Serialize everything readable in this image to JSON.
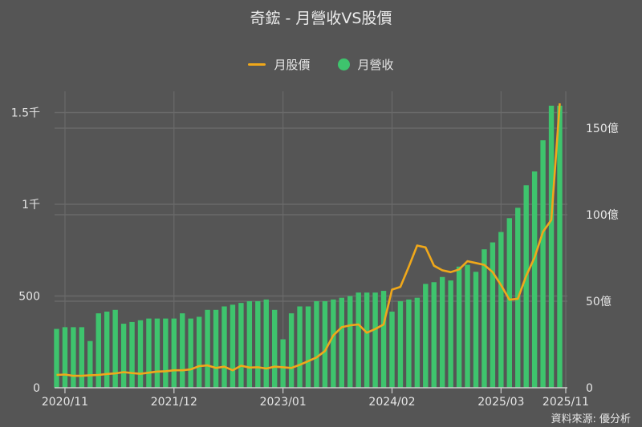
{
  "title": "奇鋐 - 月營收VS股價",
  "legend": {
    "price_label": "月股價",
    "revenue_label": "月營收"
  },
  "source": "資料來源: 優分析",
  "colors": {
    "background": "#555555",
    "price_line": "#f0a81a",
    "revenue_bar": "#3ec46d",
    "grid": "#6a6a6a"
  },
  "chart_data": {
    "type": "bar+line",
    "title": "奇鋐 - 月營收VS股價",
    "xlabel": "",
    "x_ticks": [
      "2020/11",
      "2021/12",
      "2023/01",
      "2024/02",
      "2025/03",
      "2025/11"
    ],
    "left_axis": {
      "label": "月股價",
      "ticks": [
        "0",
        "500",
        "1千",
        "1.5千"
      ],
      "tick_values": [
        0,
        500,
        1000,
        1500
      ],
      "ylim": [
        0,
        1500
      ]
    },
    "right_axis": {
      "label": "月營收 (億)",
      "ticks": [
        "0",
        "50億",
        "100億",
        "150億"
      ],
      "tick_values": [
        0,
        50,
        100,
        150
      ],
      "ylim": [
        0,
        160
      ]
    },
    "grid": true,
    "legend_position": "top",
    "categories": [
      "2020/10",
      "2020/11",
      "2020/12",
      "2021/01",
      "2021/02",
      "2021/03",
      "2021/04",
      "2021/05",
      "2021/06",
      "2021/07",
      "2021/08",
      "2021/09",
      "2021/10",
      "2021/11",
      "2021/12",
      "2022/01",
      "2022/02",
      "2022/03",
      "2022/04",
      "2022/05",
      "2022/06",
      "2022/07",
      "2022/08",
      "2022/09",
      "2022/10",
      "2022/11",
      "2022/12",
      "2023/01",
      "2023/02",
      "2023/03",
      "2023/04",
      "2023/05",
      "2023/06",
      "2023/07",
      "2023/08",
      "2023/09",
      "2023/10",
      "2023/11",
      "2023/12",
      "2024/01",
      "2024/02",
      "2024/03",
      "2024/04",
      "2024/05",
      "2024/06",
      "2024/07",
      "2024/08",
      "2024/09",
      "2024/10",
      "2024/11",
      "2024/12",
      "2025/01",
      "2025/02",
      "2025/03",
      "2025/04",
      "2025/05",
      "2025/06",
      "2025/07",
      "2025/08",
      "2025/09",
      "2025/10"
    ],
    "series": [
      {
        "name": "月營收",
        "type": "bar",
        "axis": "right",
        "unit": "億",
        "values": [
          34,
          35,
          35,
          35,
          27,
          43,
          44,
          45,
          37,
          38,
          39,
          40,
          40,
          40,
          40,
          43,
          40,
          41,
          45,
          45,
          47,
          48,
          49,
          50,
          50,
          51,
          45,
          28,
          43,
          47,
          47,
          50,
          50,
          51,
          52,
          53,
          55,
          55,
          55,
          56,
          44,
          50,
          51,
          52,
          60,
          61,
          64,
          62,
          70,
          71,
          67,
          80,
          84,
          90,
          98,
          104,
          117,
          125,
          143,
          163,
          163
        ]
      },
      {
        "name": "月股價",
        "type": "line",
        "axis": "left",
        "values": [
          70,
          72,
          65,
          65,
          68,
          70,
          75,
          78,
          85,
          80,
          76,
          82,
          88,
          90,
          95,
          95,
          100,
          118,
          122,
          108,
          115,
          95,
          120,
          110,
          112,
          105,
          115,
          112,
          108,
          125,
          145,
          165,
          200,
          285,
          330,
          340,
          345,
          300,
          320,
          345,
          535,
          550,
          660,
          775,
          765,
          665,
          640,
          630,
          645,
          690,
          680,
          670,
          630,
          560,
          480,
          485,
          610,
          710,
          850,
          915,
          1550
        ]
      }
    ]
  }
}
